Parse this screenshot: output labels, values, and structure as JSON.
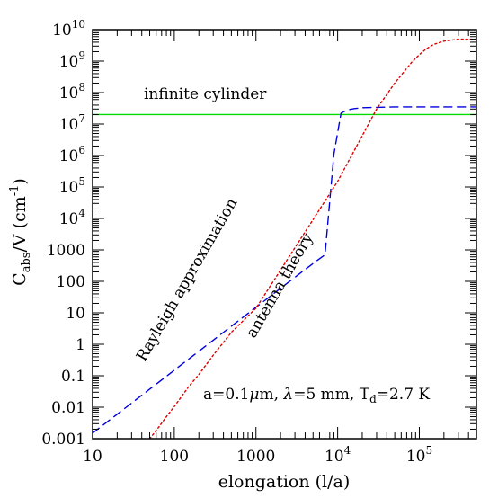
{
  "chart_data": {
    "type": "line",
    "xscale": "log",
    "yscale": "log",
    "xlim": [
      10,
      500000
    ],
    "ylim": [
      0.001,
      10000000000
    ],
    "grid": false,
    "xlabel": {
      "main": "elongation ",
      "paren": "(l/a)"
    },
    "ylabel": {
      "C": "C",
      "sub": "abs",
      "rest": "/V   (cm",
      "sup": "-1",
      "close": ")"
    },
    "x_ticks": [
      {
        "value": 10,
        "text": "10",
        "base": "",
        "exp": ""
      },
      {
        "value": 100,
        "text": "100",
        "base": "",
        "exp": ""
      },
      {
        "value": 1000,
        "text": "1000",
        "base": "",
        "exp": ""
      },
      {
        "value": 10000,
        "text": "",
        "base": "10",
        "exp": "4"
      },
      {
        "value": 100000,
        "text": "",
        "base": "10",
        "exp": "5"
      }
    ],
    "y_ticks": [
      {
        "value": 0.001,
        "text": "0.001",
        "base": "",
        "exp": ""
      },
      {
        "value": 0.01,
        "text": "0.01",
        "base": "",
        "exp": ""
      },
      {
        "value": 0.1,
        "text": "0.1",
        "base": "",
        "exp": ""
      },
      {
        "value": 1,
        "text": "1",
        "base": "",
        "exp": ""
      },
      {
        "value": 10,
        "text": "10",
        "base": "",
        "exp": ""
      },
      {
        "value": 100,
        "text": "100",
        "base": "",
        "exp": ""
      },
      {
        "value": 1000,
        "text": "1000",
        "base": "",
        "exp": ""
      },
      {
        "value": 10000,
        "text": "",
        "base": "10",
        "exp": "4"
      },
      {
        "value": 100000,
        "text": "",
        "base": "10",
        "exp": "5"
      },
      {
        "value": 1000000,
        "text": "",
        "base": "10",
        "exp": "6"
      },
      {
        "value": 10000000,
        "text": "",
        "base": "10",
        "exp": "7"
      },
      {
        "value": 100000000,
        "text": "",
        "base": "10",
        "exp": "8"
      },
      {
        "value": 1000000000,
        "text": "",
        "base": "10",
        "exp": "9"
      },
      {
        "value": 10000000000,
        "text": "",
        "base": "10",
        "exp": "10"
      }
    ],
    "series": [
      {
        "key": "infinite-cylinder",
        "name": "infinite cylinder",
        "color": "#00dd00",
        "dash": "solid",
        "x": [
          10,
          500000
        ],
        "y": [
          20000000,
          20000000
        ]
      },
      {
        "key": "rayleigh",
        "name": "Rayleigh approximation",
        "color": "#0000dd",
        "dash": "dashed",
        "x": [
          10,
          100,
          1000,
          3000,
          5000,
          7000,
          9000,
          11000,
          13000,
          16000,
          20000,
          30000,
          50000,
          100000,
          500000
        ],
        "y": [
          0.0015,
          0.15,
          15,
          135,
          370,
          700,
          1100000,
          22000000,
          28000000,
          31000000,
          33000000,
          34000000,
          35000000,
          35000000,
          35000000
        ]
      },
      {
        "key": "antenna",
        "name": "antenna theory",
        "color": "#dd0000",
        "dash": "dotted",
        "x": [
          50,
          60,
          80,
          100,
          150,
          200,
          300,
          500,
          1000,
          10000,
          30000,
          50000,
          80000,
          100000,
          120000,
          150000,
          200000,
          300000,
          500000
        ],
        "y": [
          0.001,
          0.0018,
          0.005,
          0.0105,
          0.045,
          0.11,
          0.45,
          2.4,
          14,
          150000,
          30000000,
          200000000,
          900000000,
          1600000000,
          2400000000,
          3400000000,
          4300000000,
          5000000000,
          5000000000
        ]
      }
    ],
    "annotations": {
      "infinite_cylinder": "infinite cylinder",
      "rayleigh": "Rayleigh approximation",
      "antenna": "antenna theory",
      "params": {
        "a": "a=0.1",
        "mu": "μ",
        "m_lambda": "m,  ",
        "lambda": "λ",
        "eq5mm": "=5 mm,  T",
        "d": "d",
        "temp": "=2.7 K"
      }
    }
  }
}
